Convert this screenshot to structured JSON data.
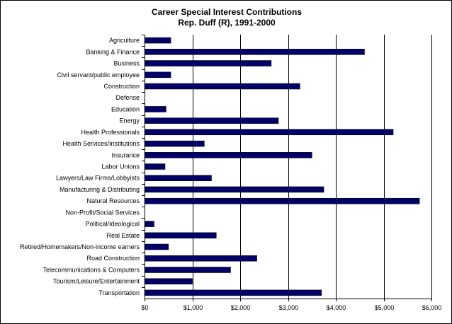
{
  "chart_data": {
    "type": "bar",
    "orientation": "horizontal",
    "title": "Career Special Interest Contributions",
    "subtitle": "Rep. Duff (R), 1991-2000",
    "categories": [
      "Agriculture",
      "Banking & Finance",
      "Business",
      "Civil servant/public employee",
      "Construction",
      "Defense",
      "Education",
      "Energy",
      "Health Professionals",
      "Health Services/Institutions",
      "Insurance",
      "Labor Unions",
      "Lawyers/Law Firms/Lobbyists",
      "Manufacturing & Distributing",
      "Natural Resources",
      "Non-Profit/Social Services",
      "Political/Ideological",
      "Real Estate",
      "Retired/Homemakers/Non-income earners",
      "Road Construction",
      "Telecommunications & Computers",
      "Tourism/Leisure/Entertainment",
      "Transportation"
    ],
    "values": [
      550,
      4600,
      2650,
      550,
      3250,
      0,
      450,
      2800,
      5200,
      1250,
      3500,
      430,
      1400,
      3750,
      5750,
      0,
      200,
      1500,
      500,
      2350,
      1800,
      1000,
      3700
    ],
    "xlim": [
      0,
      6000
    ],
    "xticks": [
      0,
      1000,
      2000,
      3000,
      4000,
      5000,
      6000
    ],
    "xtick_labels": [
      "$0",
      "$1,000",
      "$2,000",
      "$3,000",
      "$4,000",
      "$5,000",
      "$6,000"
    ],
    "xlabel": "",
    "ylabel": "",
    "grid": "vertical gridlines at major ticks",
    "legend": "none",
    "colors": {
      "bar": "#000066",
      "grid": "#000000",
      "background": "#ffffff"
    }
  }
}
